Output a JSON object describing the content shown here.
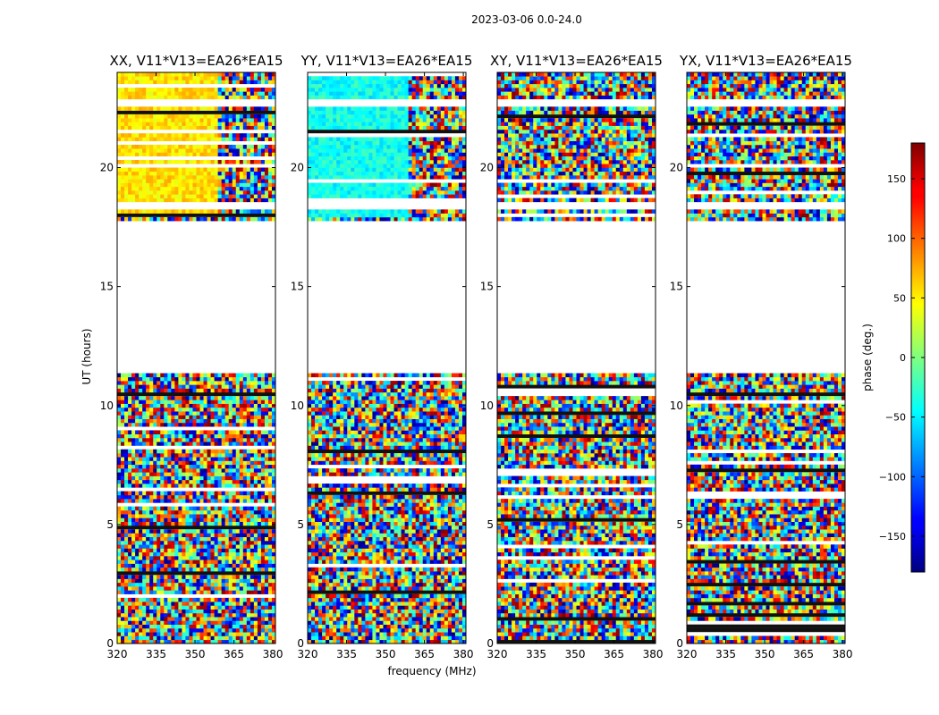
{
  "figure": {
    "suptitle": "2023-03-06 0.0-24.0",
    "xlabel": "frequency (MHz)",
    "ylabel": "UT (hours)"
  },
  "chart_data": {
    "type": "heatmap",
    "x": {
      "label": "frequency (MHz)",
      "range": [
        320,
        381
      ],
      "ticks": [
        320,
        335,
        350,
        365,
        380
      ],
      "tick_labels": [
        "320",
        "335",
        "350",
        "365",
        "380"
      ]
    },
    "y": {
      "label": "UT (hours)",
      "range": [
        0,
        24
      ],
      "ticks": [
        0,
        5,
        10,
        15,
        20
      ],
      "tick_labels": [
        "0",
        "5",
        "10",
        "15",
        "20"
      ]
    },
    "color": {
      "label": "phase (deg.)",
      "range": [
        -180,
        180
      ],
      "colormap": "jet",
      "ticks": [
        -150,
        -100,
        -50,
        0,
        50,
        100,
        150
      ],
      "tick_labels": [
        "−150",
        "−100",
        "−50",
        "0",
        "50",
        "100",
        "150"
      ]
    },
    "grid": false,
    "no_data_ut_ranges": [
      [
        11.3,
        17.7
      ],
      [
        18.2,
        18.6
      ],
      [
        22.5,
        22.9
      ]
    ],
    "panels": [
      {
        "title": "XX, V11*V13=EA26*EA15",
        "phase_ut_18_24_deg": 55
      },
      {
        "title": "YY, V11*V13=EA26*EA15",
        "phase_ut_18_24_deg": -40
      },
      {
        "title": "XY, V11*V13=EA26*EA15",
        "phase_ut_18_24_deg": null
      },
      {
        "title": "YX, V11*V13=EA26*EA15",
        "phase_ut_18_24_deg": null
      }
    ]
  }
}
